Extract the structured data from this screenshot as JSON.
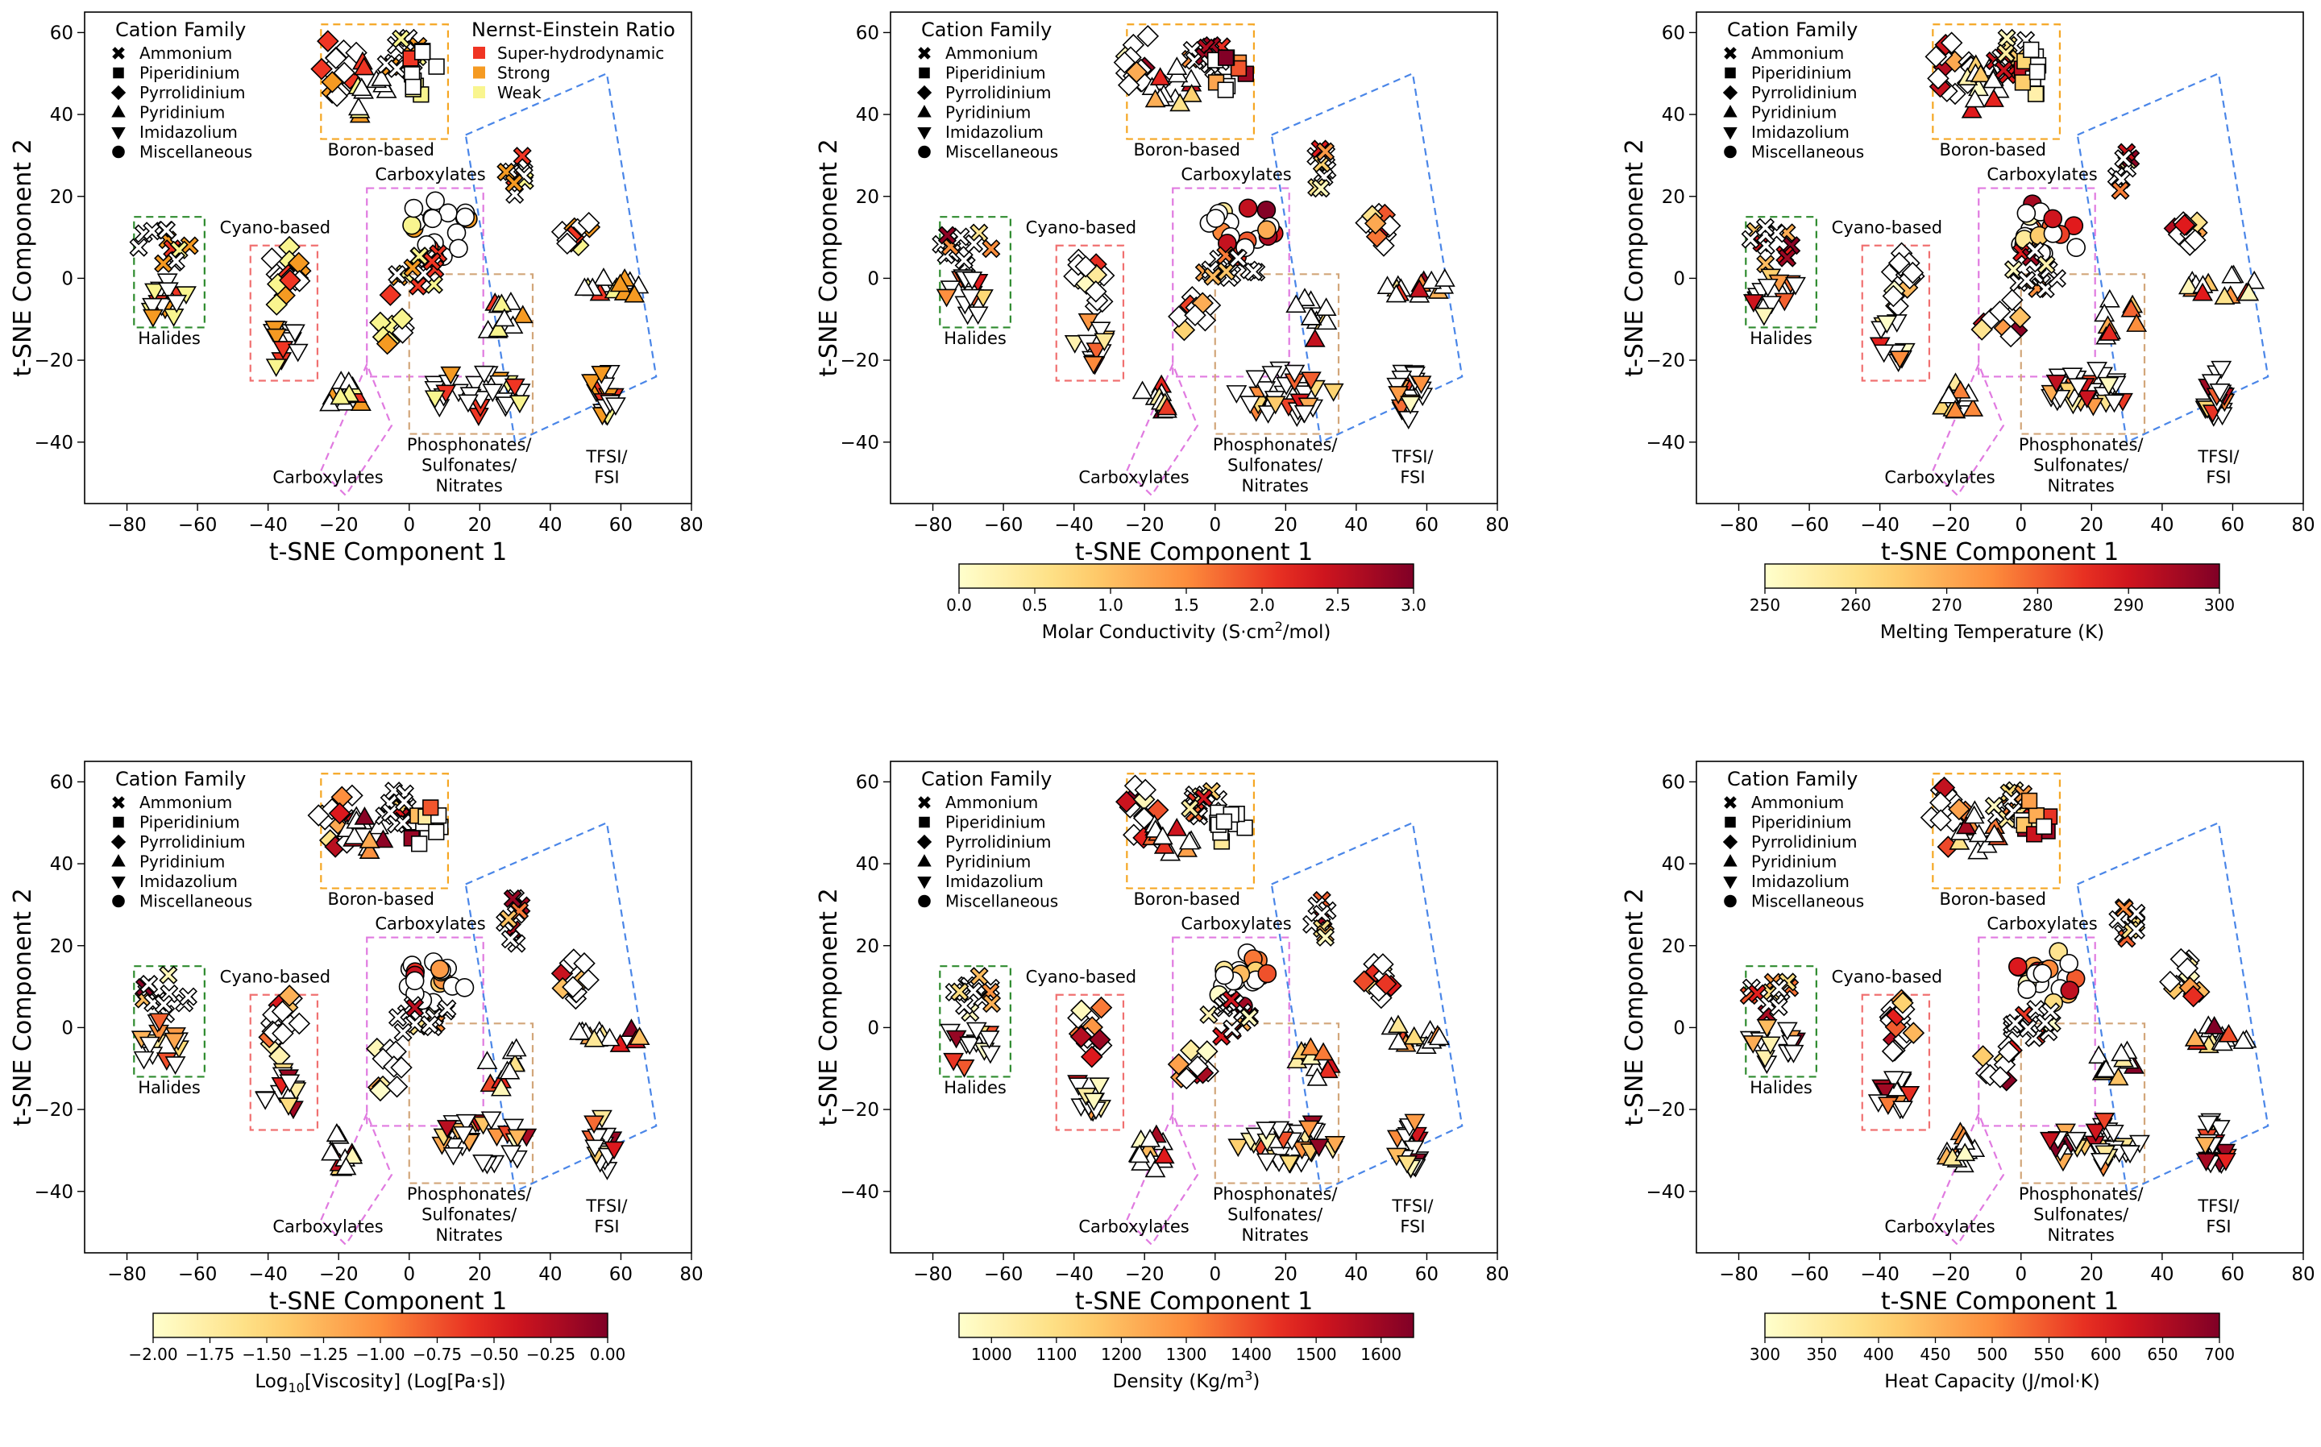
{
  "panels": [
    {
      "id": "nernst-einstein",
      "chart_data": {
        "type": "scatter",
        "xlabel": "t-SNE Component 1",
        "ylabel": "t-SNE Component 2",
        "xlim": [
          -92,
          80
        ],
        "ylim": [
          -55,
          65
        ],
        "xticks": [
          -80,
          -60,
          -40,
          -20,
          0,
          20,
          40,
          60,
          80
        ],
        "yticks": [
          -40,
          -20,
          0,
          20,
          40,
          60
        ],
        "grid": false,
        "legend_title": "Cation Family",
        "cation_families": [
          "Ammonium",
          "Piperidinium",
          "Pyrrolidinium",
          "Pyridinium",
          "Imidazolium",
          "Miscellaneous"
        ],
        "category_legend": {
          "title": "Nernst-Einstein Ratio",
          "entries": [
            {
              "label": "Super-hydrodynamic",
              "color": "#f03523"
            },
            {
              "label": "Strong",
              "color": "#f59a22"
            },
            {
              "label": "Weak",
              "color": "#f9f58f"
            }
          ]
        },
        "colorbar": null
      }
    },
    {
      "id": "molar-conductivity",
      "chart_data": {
        "type": "scatter",
        "xlabel": "t-SNE Component 1",
        "ylabel": "t-SNE Component 2",
        "xlim": [
          -92,
          80
        ],
        "ylim": [
          -55,
          65
        ],
        "xticks": [
          -80,
          -60,
          -40,
          -20,
          0,
          20,
          40,
          60,
          80
        ],
        "yticks": [
          -40,
          -20,
          0,
          20,
          40,
          60
        ],
        "grid": false,
        "legend_title": "Cation Family",
        "cation_families": [
          "Ammonium",
          "Piperidinium",
          "Pyrrolidinium",
          "Pyridinium",
          "Imidazolium",
          "Miscellaneous"
        ],
        "category_legend": null,
        "colorbar": {
          "label_parts": [
            "Molar Conductivity (S·cm",
            "2",
            "/mol)"
          ],
          "label_style": "sup",
          "min": 0.0,
          "max": 3.0,
          "ticks": [
            0.0,
            0.5,
            1.0,
            1.5,
            2.0,
            2.5,
            3.0
          ],
          "tick_labels": [
            "0.0",
            "0.5",
            "1.0",
            "1.5",
            "2.0",
            "2.5",
            "3.0"
          ],
          "cmap": "YlOrRd"
        }
      }
    },
    {
      "id": "melting-temperature",
      "chart_data": {
        "type": "scatter",
        "xlabel": "t-SNE Component 1",
        "ylabel": "t-SNE Component 2",
        "xlim": [
          -92,
          80
        ],
        "ylim": [
          -55,
          65
        ],
        "xticks": [
          -80,
          -60,
          -40,
          -20,
          0,
          20,
          40,
          60,
          80
        ],
        "yticks": [
          -40,
          -20,
          0,
          20,
          40,
          60
        ],
        "grid": false,
        "legend_title": "Cation Family",
        "cation_families": [
          "Ammonium",
          "Piperidinium",
          "Pyrrolidinium",
          "Pyridinium",
          "Imidazolium",
          "Miscellaneous"
        ],
        "category_legend": null,
        "colorbar": {
          "label_parts": [
            "Melting Temperature (K)",
            "",
            ""
          ],
          "label_style": "plain",
          "min": 250,
          "max": 300,
          "ticks": [
            250,
            260,
            270,
            280,
            290,
            300
          ],
          "tick_labels": [
            "250",
            "260",
            "270",
            "280",
            "290",
            "300"
          ],
          "cmap": "YlOrRd"
        }
      }
    },
    {
      "id": "viscosity",
      "chart_data": {
        "type": "scatter",
        "xlabel": "t-SNE Component 1",
        "ylabel": "t-SNE Component 2",
        "xlim": [
          -92,
          80
        ],
        "ylim": [
          -55,
          65
        ],
        "xticks": [
          -80,
          -60,
          -40,
          -20,
          0,
          20,
          40,
          60,
          80
        ],
        "yticks": [
          -40,
          -20,
          0,
          20,
          40,
          60
        ],
        "grid": false,
        "legend_title": "Cation Family",
        "cation_families": [
          "Ammonium",
          "Piperidinium",
          "Pyrrolidinium",
          "Pyridinium",
          "Imidazolium",
          "Miscellaneous"
        ],
        "category_legend": null,
        "colorbar": {
          "label_parts": [
            "Log",
            "10",
            "[Viscosity] (Log[Pa·s])"
          ],
          "label_style": "sub",
          "min": -2.0,
          "max": 0.0,
          "ticks": [
            -2.0,
            -1.75,
            -1.5,
            -1.25,
            -1.0,
            -0.75,
            -0.5,
            -0.25,
            0.0
          ],
          "tick_labels": [
            "−2.00",
            "−1.75",
            "−1.50",
            "−1.25",
            "−1.00",
            "−0.75",
            "−0.50",
            "−0.25",
            "0.00"
          ],
          "cmap": "YlOrRd"
        }
      }
    },
    {
      "id": "density",
      "chart_data": {
        "type": "scatter",
        "xlabel": "t-SNE Component 1",
        "ylabel": "t-SNE Component 2",
        "xlim": [
          -92,
          80
        ],
        "ylim": [
          -55,
          65
        ],
        "xticks": [
          -80,
          -60,
          -40,
          -20,
          0,
          20,
          40,
          60,
          80
        ],
        "yticks": [
          -40,
          -20,
          0,
          20,
          40,
          60
        ],
        "grid": false,
        "legend_title": "Cation Family",
        "cation_families": [
          "Ammonium",
          "Piperidinium",
          "Pyrrolidinium",
          "Pyridinium",
          "Imidazolium",
          "Miscellaneous"
        ],
        "category_legend": null,
        "colorbar": {
          "label_parts": [
            "Density (Kg/m",
            "3",
            ")"
          ],
          "label_style": "sup",
          "min": 950,
          "max": 1650,
          "ticks": [
            1000,
            1100,
            1200,
            1300,
            1400,
            1500,
            1600
          ],
          "tick_labels": [
            "1000",
            "1100",
            "1200",
            "1300",
            "1400",
            "1500",
            "1600"
          ],
          "cmap": "YlOrRd"
        }
      }
    },
    {
      "id": "heat-capacity",
      "chart_data": {
        "type": "scatter",
        "xlabel": "t-SNE Component 1",
        "ylabel": "t-SNE Component 2",
        "xlim": [
          -92,
          80
        ],
        "ylim": [
          -55,
          65
        ],
        "xticks": [
          -80,
          -60,
          -40,
          -20,
          0,
          20,
          40,
          60,
          80
        ],
        "yticks": [
          -40,
          -20,
          0,
          20,
          40,
          60
        ],
        "grid": false,
        "legend_title": "Cation Family",
        "cation_families": [
          "Ammonium",
          "Piperidinium",
          "Pyrrolidinium",
          "Pyridinium",
          "Imidazolium",
          "Miscellaneous"
        ],
        "category_legend": null,
        "colorbar": {
          "label_parts": [
            "Heat Capacity (J/mol·K)",
            "",
            ""
          ],
          "label_style": "plain",
          "min": 300,
          "max": 700,
          "ticks": [
            300,
            350,
            400,
            450,
            500,
            550,
            600,
            650,
            700
          ],
          "tick_labels": [
            "300",
            "350",
            "400",
            "450",
            "500",
            "550",
            "600",
            "650",
            "700"
          ],
          "cmap": "YlOrRd"
        }
      }
    }
  ],
  "regions": [
    {
      "label_lines": [
        "Boron-based"
      ],
      "color": "#f5a623",
      "x1": -25,
      "y1": 34,
      "x2": 11,
      "y2": 62
    },
    {
      "label_lines": [
        "Halides"
      ],
      "color": "#2e8b2e",
      "x1": -78,
      "y1": -12,
      "x2": -58,
      "y2": 15
    },
    {
      "label_lines": [
        "Cyano-based"
      ],
      "color": "#f07070",
      "x1": -45,
      "y1": -25,
      "x2": -26,
      "y2": 8
    },
    {
      "label_lines": [
        "Carboxylates"
      ],
      "color": "#e07ae0",
      "x1": -12,
      "y1": -24,
      "x2": 21,
      "y2": 22
    },
    {
      "label_lines": [
        "Phosphonates/",
        "Sulfonates/",
        "Nitrates"
      ],
      "color": "#d2a67a",
      "x1": 0,
      "y1": -38,
      "x2": 35,
      "y2": 1
    },
    {
      "label_lines": [
        "Carboxylates"
      ],
      "color": "#e07ae0",
      "rotated": true,
      "corners": [
        [
          -25,
          -47
        ],
        [
          -12,
          -21
        ],
        [
          -5,
          -36
        ],
        [
          -18,
          -53
        ]
      ]
    },
    {
      "label_lines": [
        "TFSI/",
        "FSI"
      ],
      "color": "#4a86e8",
      "rotated": true,
      "corners": [
        [
          16,
          35
        ],
        [
          56,
          50
        ],
        [
          70,
          -24
        ],
        [
          30,
          -40
        ]
      ]
    }
  ],
  "cluster_text": {
    "boron": "Boron-based",
    "halides": "Halides",
    "cyano": "Cyano-based",
    "carbox_top": "Carboxylates",
    "carbox_bottom": "Carboxylates",
    "phos": [
      "Phosphonates/",
      "Sulfonates/",
      "Nitrates"
    ],
    "tfsi": [
      "TFSI/",
      "FSI"
    ]
  },
  "point_clusters": [
    {
      "cx": -20,
      "cy": 52,
      "rx": 6,
      "ry": 8,
      "n": 14,
      "shape": "diamond"
    },
    {
      "cx": -12,
      "cy": 46,
      "rx": 6,
      "ry": 7,
      "n": 12,
      "shape": "triangle"
    },
    {
      "cx": -2,
      "cy": 54,
      "rx": 6,
      "ry": 5,
      "n": 12,
      "shape": "cross"
    },
    {
      "cx": 4,
      "cy": 50,
      "rx": 5,
      "ry": 6,
      "n": 10,
      "shape": "square"
    },
    {
      "cx": -70,
      "cy": 8,
      "rx": 8,
      "ry": 5,
      "n": 12,
      "shape": "cross"
    },
    {
      "cx": -70,
      "cy": -4,
      "rx": 7,
      "ry": 6,
      "n": 14,
      "shape": "down"
    },
    {
      "cx": -35,
      "cy": 0,
      "rx": 5,
      "ry": 8,
      "n": 16,
      "shape": "diamond"
    },
    {
      "cx": -36,
      "cy": -16,
      "rx": 5,
      "ry": 6,
      "n": 12,
      "shape": "down"
    },
    {
      "cx": 8,
      "cy": 12,
      "rx": 10,
      "ry": 7,
      "n": 20,
      "shape": "circle"
    },
    {
      "cx": 4,
      "cy": 2,
      "rx": 8,
      "ry": 5,
      "n": 14,
      "shape": "cross"
    },
    {
      "cx": -6,
      "cy": -10,
      "rx": 6,
      "ry": 6,
      "n": 10,
      "shape": "diamond"
    },
    {
      "cx": 20,
      "cy": -28,
      "rx": 14,
      "ry": 6,
      "n": 30,
      "shape": "down"
    },
    {
      "cx": 27,
      "cy": -10,
      "rx": 6,
      "ry": 6,
      "n": 10,
      "shape": "triangle"
    },
    {
      "cx": 30,
      "cy": 26,
      "rx": 3,
      "ry": 6,
      "n": 10,
      "shape": "cross"
    },
    {
      "cx": 47,
      "cy": 12,
      "rx": 5,
      "ry": 5,
      "n": 12,
      "shape": "diamond"
    },
    {
      "cx": 57,
      "cy": -2,
      "rx": 10,
      "ry": 3,
      "n": 14,
      "shape": "triangle"
    },
    {
      "cx": 55,
      "cy": -28,
      "rx": 4,
      "ry": 7,
      "n": 20,
      "shape": "down"
    },
    {
      "cx": -18,
      "cy": -30,
      "rx": 5,
      "ry": 5,
      "n": 12,
      "shape": "triangle"
    }
  ]
}
